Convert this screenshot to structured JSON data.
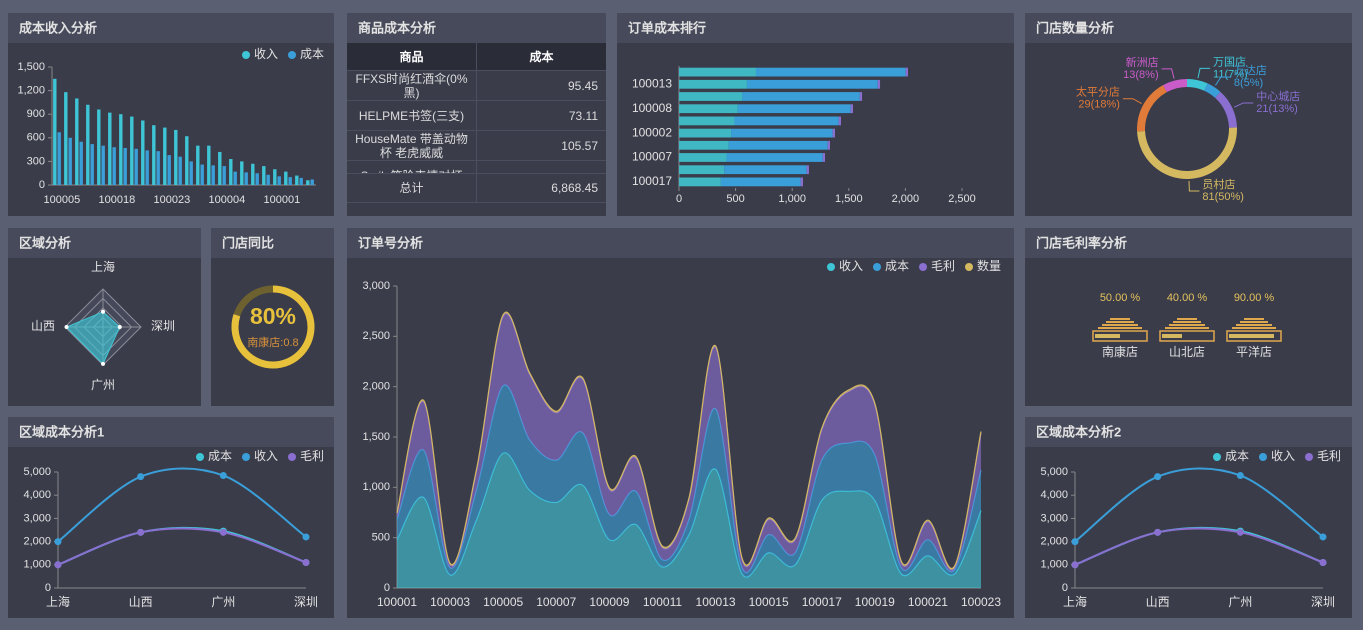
{
  "chart_data": [
    {
      "type": "bar",
      "title": "成本收入分析",
      "categories": [
        "100005",
        null,
        null,
        null,
        null,
        "100018",
        null,
        null,
        null,
        null,
        "100023",
        null,
        null,
        null,
        null,
        "100004",
        null,
        null,
        null,
        null,
        "100001",
        null,
        null,
        null
      ],
      "series": [
        {
          "name": "收入",
          "color": "#3fc6d6",
          "values": [
            1350,
            1180,
            1100,
            1020,
            960,
            920,
            900,
            870,
            820,
            760,
            730,
            700,
            620,
            500,
            500,
            420,
            330,
            300,
            270,
            240,
            200,
            170,
            120,
            60
          ]
        },
        {
          "name": "成本",
          "color": "#3a9fd9",
          "values": [
            670,
            600,
            550,
            520,
            500,
            480,
            470,
            460,
            440,
            430,
            380,
            360,
            300,
            260,
            250,
            240,
            170,
            160,
            150,
            130,
            110,
            100,
            90,
            70
          ]
        }
      ],
      "ylim": [
        0,
        1500
      ],
      "yticks": [
        0,
        300,
        600,
        900,
        {
          "value": 1200,
          "label": "1,200"
        },
        {
          "value": 1500,
          "label": "1,500"
        }
      ],
      "legend": "top-right"
    },
    {
      "type": "table",
      "title": "商品成本分析",
      "columns": [
        "商品",
        "成本"
      ],
      "rows": [
        [
          "FFXS时尚红酒伞(0%黑)",
          "95.45"
        ],
        [
          "HELPME书签(三支)",
          "73.11"
        ],
        [
          "HouseMate 带盖动物杯 老虎威威",
          "105.57"
        ],
        [
          "Smile笑脸表情对杯"
        ]
      ],
      "footer": [
        "总计",
        "6,868.45"
      ]
    },
    {
      "type": "hbar",
      "title": "订单成本排行",
      "categories": [
        null,
        "100013",
        null,
        "100008",
        null,
        "100002",
        null,
        "100007",
        null,
        "100017"
      ],
      "series": [
        {
          "color": "#3fb8c4",
          "values": [
            680,
            600,
            560,
            520,
            490,
            460,
            440,
            420,
            400,
            370
          ]
        },
        {
          "color": "#3a9fd9",
          "values": [
            1323,
            1156,
            1037,
            997,
            921,
            898,
            874,
            850,
            728,
            705
          ]
        },
        {
          "color": "#8a6fd1",
          "values": [
            20,
            20,
            20,
            20,
            20,
            20,
            20,
            20,
            20,
            20
          ]
        }
      ],
      "xlim": [
        0,
        2500
      ],
      "xticks": [
        0,
        500,
        {
          "value": 1000,
          "label": "1,000"
        },
        {
          "value": 1500,
          "label": "1,500"
        },
        {
          "value": 2000,
          "label": "2,000"
        },
        {
          "value": 2500,
          "label": "2,500"
        }
      ],
      "stacked": true
    },
    {
      "type": "donut",
      "title": "门店数量分析",
      "categories": [
        "万国店",
        "万达店",
        "中心城店",
        "员村店",
        "太平分店",
        "新洲店"
      ],
      "values": [
        11,
        8,
        21,
        81,
        29,
        13
      ],
      "value_labels": [
        "11(7%)",
        "8(5%)",
        "21(13%)",
        "81(50%)",
        "29(18%)",
        "13(8%)"
      ],
      "colors": [
        "#3fc6d6",
        "#3a9fd9",
        "#8a6fd1",
        "#d4b961",
        "#e07b39",
        "#c95cc9"
      ]
    },
    {
      "type": "radar",
      "title": "区域分析",
      "categories": [
        "上海",
        "深圳",
        "广州",
        "山西"
      ],
      "values": [
        2000,
        2200,
        4850,
        4800
      ],
      "rlim": [
        0,
        5000
      ],
      "color": "#3fc6d6"
    },
    {
      "type": "gauge",
      "title": "门店同比",
      "value": 80,
      "value_label": "80%",
      "label": "南康店:0.8",
      "ylim": [
        0,
        100
      ],
      "color": "#e8c13c"
    },
    {
      "type": "area",
      "title": "订单号分析",
      "categories": [
        "100001",
        null,
        "100003",
        null,
        "100005",
        null,
        "100007",
        null,
        "100009",
        null,
        "100011",
        null,
        "100013",
        null,
        "100015",
        null,
        "100017",
        null,
        "100019",
        null,
        "100021",
        null,
        "100023"
      ],
      "series": [
        {
          "name": "收入",
          "color": "#3fc6d6",
          "values": [
            480,
            900,
            130,
            680,
            1340,
            970,
            850,
            1020,
            480,
            630,
            210,
            530,
            1180,
            140,
            350,
            230,
            870,
            960,
            870,
            140,
            320,
            140,
            770
          ]
        },
        {
          "name": "成本",
          "color": "#3a9fd9",
          "values": [
            200,
            470,
            70,
            300,
            670,
            500,
            420,
            520,
            250,
            330,
            70,
            150,
            600,
            60,
            180,
            120,
            400,
            480,
            450,
            60,
            160,
            40,
            400
          ]
        },
        {
          "name": "毛利",
          "color": "#8a6fd1",
          "values": [
            50,
            480,
            30,
            190,
            690,
            650,
            470,
            530,
            250,
            330,
            120,
            200,
            610,
            80,
            150,
            130,
            300,
            510,
            500,
            50,
            180,
            20,
            370
          ]
        },
        {
          "name": "数量",
          "color": "#d4b961",
          "values": [
            15,
            15,
            15,
            15,
            15,
            15,
            15,
            15,
            15,
            15,
            15,
            15,
            15,
            15,
            15,
            15,
            15,
            15,
            15,
            15,
            15,
            15,
            15
          ]
        }
      ],
      "ylim": [
        0,
        3000
      ],
      "yticks": [
        0,
        500,
        {
          "value": 1000,
          "label": "1,000"
        },
        {
          "value": 1500,
          "label": "1,500"
        },
        {
          "value": 2000,
          "label": "2,000"
        },
        {
          "value": 2500,
          "label": "2,500"
        },
        {
          "value": 3000,
          "label": "3,000"
        }
      ],
      "stacked": true,
      "legend": "top-right"
    },
    {
      "type": "pictorial",
      "title": "门店毛利率分析",
      "categories": [
        "南康店",
        "山北店",
        "平洋店"
      ],
      "values": [
        50,
        40,
        90
      ],
      "value_labels": [
        "50.00 %",
        "40.00 %",
        "90.00 %"
      ],
      "color": "#e0a84d"
    },
    {
      "type": "line",
      "title": "区域成本分析1",
      "categories": [
        "上海",
        "山西",
        "广州",
        "深圳"
      ],
      "series": [
        {
          "name": "成本",
          "color": "#3fc6d6",
          "values": [
            1000,
            2400,
            2450,
            1100
          ]
        },
        {
          "name": "收入",
          "color": "#3a9fd9",
          "values": [
            2000,
            4800,
            4850,
            2200
          ]
        },
        {
          "name": "毛利",
          "color": "#8a6fd1",
          "values": [
            1000,
            2400,
            2400,
            1100
          ]
        }
      ],
      "ylim": [
        0,
        5000
      ],
      "yticks": [
        0,
        {
          "value": 1000,
          "label": "1,000"
        },
        {
          "value": 2000,
          "label": "2,000"
        },
        {
          "value": 3000,
          "label": "3,000"
        },
        {
          "value": 4000,
          "label": "4,000"
        },
        {
          "value": 5000,
          "label": "5,000"
        }
      ],
      "legend": "top-right"
    },
    {
      "type": "line",
      "title": "区域成本分析2",
      "categories": [
        "上海",
        "山西",
        "广州",
        "深圳"
      ],
      "series": [
        {
          "name": "成本",
          "color": "#3fc6d6",
          "values": [
            1000,
            2400,
            2450,
            1100
          ]
        },
        {
          "name": "收入",
          "color": "#3a9fd9",
          "values": [
            2000,
            4800,
            4850,
            2200
          ]
        },
        {
          "name": "毛利",
          "color": "#8a6fd1",
          "values": [
            1000,
            2400,
            2400,
            1100
          ]
        }
      ],
      "ylim": [
        0,
        5000
      ],
      "yticks": [
        0,
        {
          "value": 1000,
          "label": "1,000"
        },
        {
          "value": 2000,
          "label": "2,000"
        },
        {
          "value": 3000,
          "label": "3,000"
        },
        {
          "value": 4000,
          "label": "4,000"
        },
        {
          "value": 5000,
          "label": "5,000"
        }
      ],
      "legend": "top-right"
    }
  ]
}
